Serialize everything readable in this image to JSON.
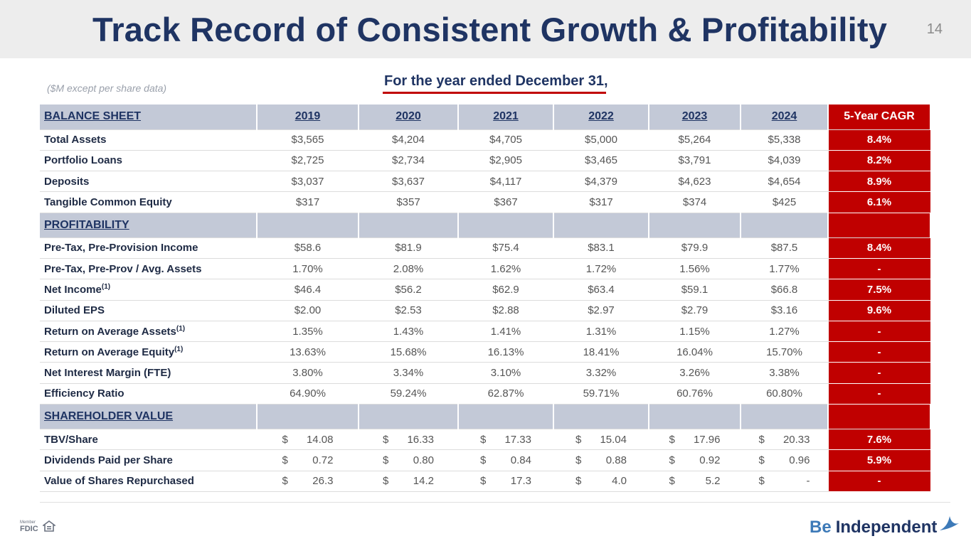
{
  "header": {
    "title": "Track Record of Consistent Growth & Profitability",
    "page_number": "14"
  },
  "units_note": "($M except per share data)",
  "period_label": "For the year ended December 31,",
  "years": [
    "2019",
    "2020",
    "2021",
    "2022",
    "2023",
    "2024"
  ],
  "cagr_header": "5-Year CAGR",
  "sections": {
    "balance_sheet": "BALANCE SHEET",
    "profitability": "PROFITABILITY",
    "shareholder_value": "SHAREHOLDER VALUE"
  },
  "balance_sheet_rows": [
    {
      "label": "Total Assets",
      "values": [
        "$3,565",
        "$4,204",
        "$4,705",
        "$5,000",
        "$5,264",
        "$5,338"
      ],
      "cagr": "8.4%"
    },
    {
      "label": "Portfolio Loans",
      "values": [
        "$2,725",
        "$2,734",
        "$2,905",
        "$3,465",
        "$3,791",
        "$4,039"
      ],
      "cagr": "8.2%"
    },
    {
      "label": "Deposits",
      "values": [
        "$3,037",
        "$3,637",
        "$4,117",
        "$4,379",
        "$4,623",
        "$4,654"
      ],
      "cagr": "8.9%"
    },
    {
      "label": "Tangible Common Equity",
      "values": [
        "$317",
        "$357",
        "$367",
        "$317",
        "$374",
        "$425"
      ],
      "cagr": "6.1%"
    }
  ],
  "profitability_rows": [
    {
      "label": "Pre-Tax, Pre-Provision Income",
      "note": "",
      "values": [
        "$58.6",
        "$81.9",
        "$75.4",
        "$83.1",
        "$79.9",
        "$87.5"
      ],
      "cagr": "8.4%"
    },
    {
      "label": "Pre-Tax, Pre-Prov / Avg. Assets",
      "note": "",
      "values": [
        "1.70%",
        "2.08%",
        "1.62%",
        "1.72%",
        "1.56%",
        "1.77%"
      ],
      "cagr": "-"
    },
    {
      "label": "Net Income",
      "note": "(1)",
      "values": [
        "$46.4",
        "$56.2",
        "$62.9",
        "$63.4",
        "$59.1",
        "$66.8"
      ],
      "cagr": "7.5%"
    },
    {
      "label": "Diluted EPS",
      "note": "",
      "values": [
        "$2.00",
        "$2.53",
        "$2.88",
        "$2.97",
        "$2.79",
        "$3.16"
      ],
      "cagr": "9.6%"
    },
    {
      "label": "Return on Average Assets",
      "note": "(1)",
      "values": [
        "1.35%",
        "1.43%",
        "1.41%",
        "1.31%",
        "1.15%",
        "1.27%"
      ],
      "cagr": "-"
    },
    {
      "label": "Return on Average Equity",
      "note": "(1)",
      "values": [
        "13.63%",
        "15.68%",
        "16.13%",
        "18.41%",
        "16.04%",
        "15.70%"
      ],
      "cagr": "-"
    },
    {
      "label": "Net Interest Margin (FTE)",
      "note": "",
      "values": [
        "3.80%",
        "3.34%",
        "3.10%",
        "3.32%",
        "3.26%",
        "3.38%"
      ],
      "cagr": "-"
    },
    {
      "label": "Efficiency Ratio",
      "note": "",
      "values": [
        "64.90%",
        "59.24%",
        "62.87%",
        "59.71%",
        "60.76%",
        "60.80%"
      ],
      "cagr": "-"
    }
  ],
  "shareholder_rows": [
    {
      "label": "TBV/Share",
      "values": [
        "14.08",
        "16.33",
        "17.33",
        "15.04",
        "17.96",
        "20.33"
      ],
      "cagr": "7.6%"
    },
    {
      "label": "Dividends Paid per Share",
      "values": [
        "0.72",
        "0.80",
        "0.84",
        "0.88",
        "0.92",
        "0.96"
      ],
      "cagr": "5.9%"
    },
    {
      "label": "Value of Shares Repurchased",
      "values": [
        "26.3",
        "14.2",
        "17.3",
        "4.0",
        "5.2",
        "-"
      ],
      "cagr": "-"
    }
  ],
  "currency_symbol": "$",
  "footer": {
    "fdic_member": "Member",
    "fdic": "FDIC",
    "brand_be": "Be",
    "brand_name": "Independent"
  },
  "colors": {
    "navy": "#1f3463",
    "red": "#c00000",
    "section_bg": "#c3c9d7",
    "header_bg": "#ededed"
  }
}
